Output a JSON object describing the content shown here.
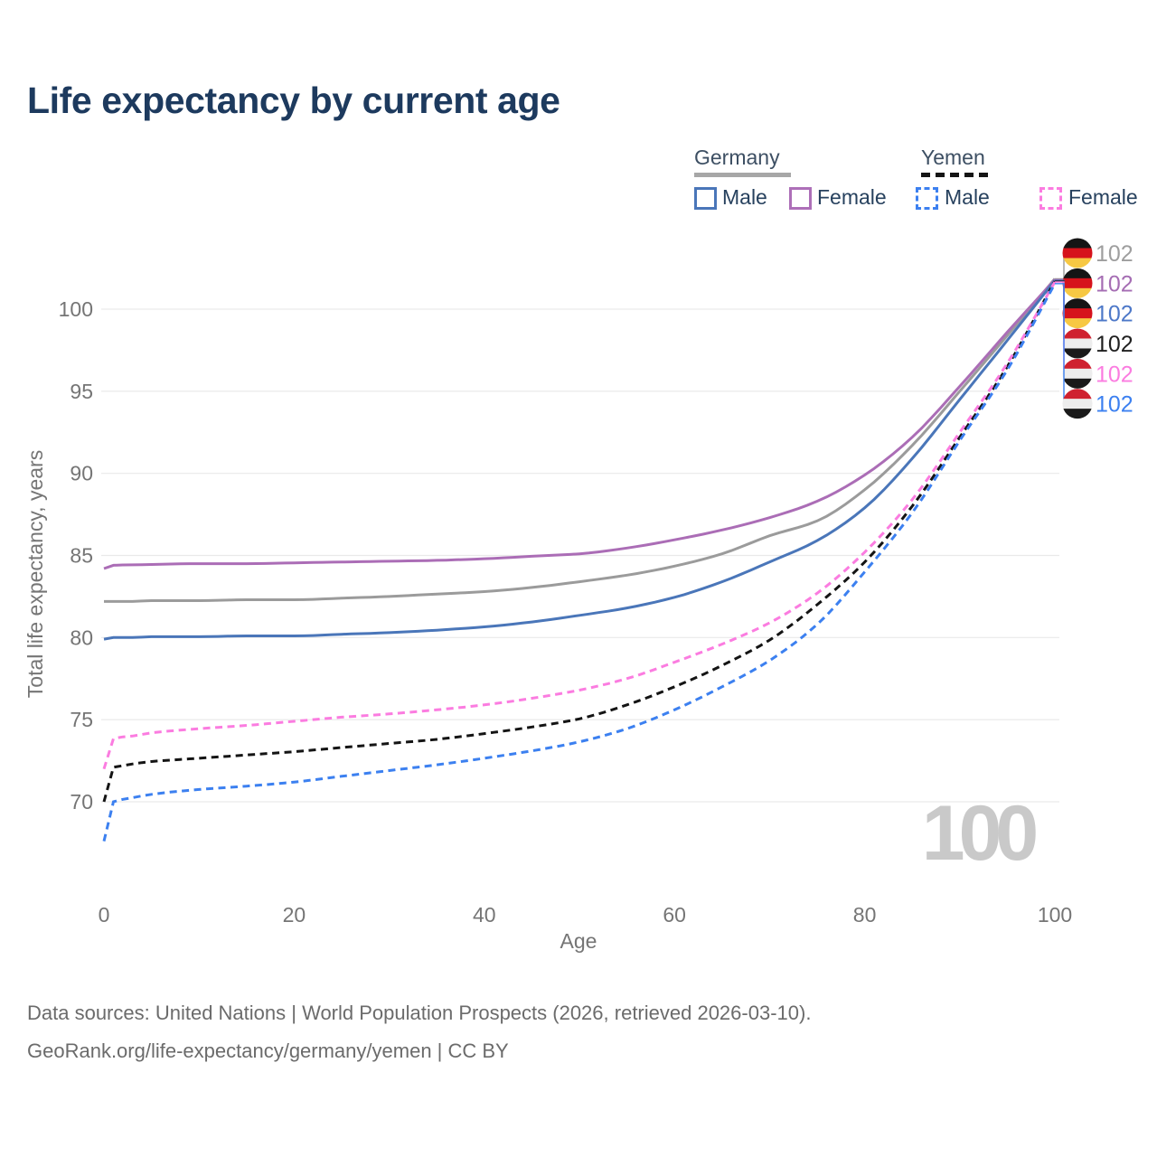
{
  "title": "Life expectancy by current age",
  "legend": {
    "groups": [
      {
        "label": "Germany",
        "underline": {
          "color": "#a7a7a7",
          "style": "solid"
        },
        "items": [
          {
            "label": "Male",
            "color": "#4a76b9",
            "dashed": false
          },
          {
            "label": "Female",
            "color": "#ad6fb8",
            "dashed": false
          }
        ]
      },
      {
        "label": "Yemen",
        "underline": {
          "color": "#151515",
          "style": "dashed"
        },
        "items": [
          {
            "label": "Male",
            "color": "#3c80f0",
            "dashed": true
          },
          {
            "label": "Female",
            "color": "#fb7ce0",
            "dashed": true
          }
        ]
      }
    ]
  },
  "chart_data": {
    "type": "line",
    "title": "Life expectancy by current age",
    "xlabel": "Age",
    "ylabel": "Total life expectancy, years",
    "xlim": [
      0,
      100
    ],
    "ylim": [
      66,
      103
    ],
    "xticks": [
      0,
      20,
      40,
      60,
      80,
      100
    ],
    "yticks": [
      70,
      75,
      80,
      85,
      90,
      95,
      100
    ],
    "grid": "horizontal",
    "grid_color": "#e9e9e9",
    "legend_position": "top-right",
    "watermark": {
      "text": "100",
      "color": "#c9c9c9"
    },
    "flags": {
      "de": [
        "#151515",
        "#d6131c",
        "#f7c843"
      ],
      "ye": [
        "#cf2130",
        "#ededed",
        "#1a1a1a"
      ]
    },
    "x": [
      0,
      1,
      2,
      3,
      5,
      10,
      15,
      20,
      25,
      30,
      35,
      40,
      45,
      50,
      55,
      60,
      65,
      70,
      75,
      80,
      85,
      90,
      95,
      100
    ],
    "series": [
      {
        "name": "Germany",
        "country": "Germany",
        "sex": "both",
        "flag": "de",
        "color": "#9b9b9b",
        "dashed": false,
        "end_label": "102",
        "end_label_color": "#9e9e9e",
        "values": [
          82.2,
          82.2,
          82.2,
          82.2,
          82.25,
          82.25,
          82.3,
          82.3,
          82.4,
          82.5,
          82.65,
          82.8,
          83.05,
          83.4,
          83.8,
          84.35,
          85.1,
          86.2,
          87.1,
          89.0,
          91.7,
          95.0,
          98.4,
          101.85
        ]
      },
      {
        "name": "Germany Female",
        "country": "Germany",
        "sex": "female",
        "flag": "de",
        "color": "#ab6db6",
        "dashed": false,
        "end_label": "102",
        "end_label_color": "#a56db3",
        "values": [
          84.2,
          84.4,
          84.42,
          84.43,
          84.45,
          84.5,
          84.5,
          84.55,
          84.6,
          84.65,
          84.7,
          84.8,
          84.95,
          85.1,
          85.45,
          85.95,
          86.55,
          87.3,
          88.3,
          89.9,
          92.2,
          95.3,
          98.6,
          101.8
        ]
      },
      {
        "name": "Germany Male",
        "country": "Germany",
        "sex": "male",
        "flag": "de",
        "color": "#4a76b9",
        "dashed": false,
        "end_label": "102",
        "end_label_color": "#4d78c8",
        "values": [
          79.9,
          80.0,
          80.0,
          80.0,
          80.05,
          80.05,
          80.1,
          80.1,
          80.2,
          80.3,
          80.45,
          80.65,
          80.95,
          81.35,
          81.8,
          82.45,
          83.4,
          84.6,
          85.9,
          87.9,
          90.9,
          94.5,
          98.1,
          101.75
        ]
      },
      {
        "name": "Yemen",
        "country": "Yemen",
        "sex": "both",
        "flag": "ye",
        "color": "#141414",
        "dashed": true,
        "end_label": "102",
        "end_label_color": "#1f1f1f",
        "values": [
          70.0,
          72.1,
          72.2,
          72.3,
          72.45,
          72.65,
          72.85,
          73.05,
          73.3,
          73.55,
          73.8,
          74.15,
          74.55,
          75.05,
          75.9,
          77.0,
          78.3,
          79.85,
          82.0,
          84.6,
          88.0,
          92.2,
          96.5,
          101.7
        ]
      },
      {
        "name": "Yemen Female",
        "country": "Yemen",
        "sex": "female",
        "flag": "ye",
        "color": "#fb7ce0",
        "dashed": true,
        "end_label": "102",
        "end_label_color": "#fb7ce0",
        "values": [
          72.0,
          73.85,
          73.95,
          74.0,
          74.2,
          74.45,
          74.65,
          74.9,
          75.15,
          75.35,
          75.6,
          75.9,
          76.3,
          76.8,
          77.5,
          78.5,
          79.6,
          80.9,
          82.7,
          85.2,
          88.4,
          92.5,
          96.7,
          101.65
        ]
      },
      {
        "name": "Yemen Male",
        "country": "Yemen",
        "sex": "male",
        "flag": "ye",
        "color": "#3c80f0",
        "dashed": true,
        "end_label": "102",
        "end_label_color": "#3c80f0",
        "values": [
          67.6,
          70.0,
          70.15,
          70.25,
          70.45,
          70.75,
          70.95,
          71.2,
          71.55,
          71.9,
          72.25,
          72.65,
          73.1,
          73.65,
          74.45,
          75.6,
          77.0,
          78.6,
          80.8,
          84.0,
          87.6,
          92.0,
          96.3,
          101.55
        ]
      }
    ]
  },
  "footer": {
    "line1": "Data sources: United Nations | World Population Prospects (2026, retrieved 2026-03-10).",
    "line2": "GeoRank.org/life-expectancy/germany/yemen | CC BY"
  }
}
